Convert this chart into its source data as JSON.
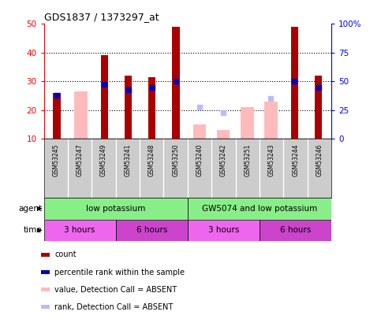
{
  "title": "GDS1837 / 1373297_at",
  "samples": [
    "GSM53245",
    "GSM53247",
    "GSM53249",
    "GSM53241",
    "GSM53248",
    "GSM53250",
    "GSM53240",
    "GSM53242",
    "GSM53251",
    "GSM53243",
    "GSM53244",
    "GSM53246"
  ],
  "count_values": [
    26,
    null,
    39,
    32,
    31.5,
    49,
    null,
    null,
    null,
    null,
    49,
    32
  ],
  "percentile_values": [
    25,
    null,
    29,
    27,
    28,
    30,
    null,
    null,
    null,
    null,
    30,
    28
  ],
  "absent_value_bars": [
    null,
    26.5,
    null,
    null,
    null,
    null,
    15,
    13,
    21,
    23,
    null,
    null
  ],
  "absent_rank_dots": [
    null,
    null,
    null,
    null,
    null,
    null,
    21,
    19,
    null,
    24,
    null,
    null
  ],
  "ylim": [
    10,
    50
  ],
  "yticks_left": [
    10,
    20,
    30,
    40,
    50
  ],
  "right_tick_positions": [
    10,
    20,
    30,
    40,
    50
  ],
  "right_tick_labels": [
    "0",
    "25",
    "50",
    "75",
    "100%"
  ],
  "bar_color": "#aa0000",
  "percentile_color": "#0000bb",
  "absent_bar_color": "#ffbbbb",
  "absent_rank_color": "#bbbbff",
  "agent_groups": [
    {
      "label": "low potassium",
      "start": 0,
      "end": 6,
      "color": "#88ee88"
    },
    {
      "label": "GW5074 and low potassium",
      "start": 6,
      "end": 12,
      "color": "#88ee88"
    }
  ],
  "time_groups": [
    {
      "label": "3 hours",
      "start": 0,
      "end": 3,
      "color": "#ee66ee"
    },
    {
      "label": "6 hours",
      "start": 3,
      "end": 6,
      "color": "#cc44cc"
    },
    {
      "label": "3 hours",
      "start": 6,
      "end": 9,
      "color": "#ee66ee"
    },
    {
      "label": "6 hours",
      "start": 9,
      "end": 12,
      "color": "#cc44cc"
    }
  ],
  "legend_items": [
    {
      "color": "#aa0000",
      "label": "count",
      "marker": "s"
    },
    {
      "color": "#0000bb",
      "label": "percentile rank within the sample",
      "marker": "s"
    },
    {
      "color": "#ffbbbb",
      "label": "value, Detection Call = ABSENT",
      "marker": "s"
    },
    {
      "color": "#bbbbff",
      "label": "rank, Detection Call = ABSENT",
      "marker": "s"
    }
  ],
  "fig_width": 4.83,
  "fig_height": 4.05,
  "dpi": 100
}
